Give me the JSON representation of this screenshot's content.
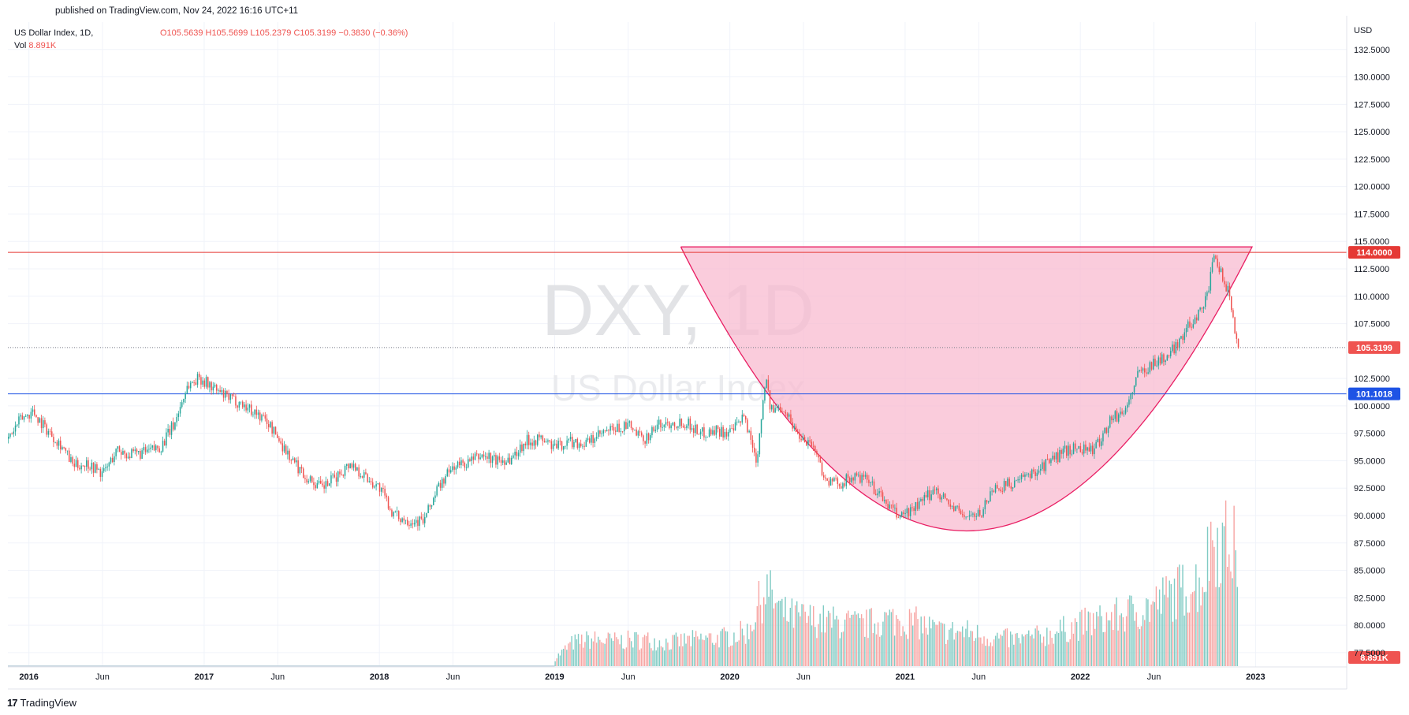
{
  "header": {
    "published": "published on TradingView.com, Nov 24, 2022 16:16 UTC+11",
    "symbol": "US Dollar Index, 1D,",
    "open": "O105.5639",
    "high": "H105.5699",
    "low": "L105.2379",
    "close": "C105.3199",
    "change": "−0.3830 (−0.36%)",
    "vol_label": "Vol",
    "vol_value": "8.891K"
  },
  "watermark": {
    "ticker": "DXY, 1D",
    "name": "US Dollar Index"
  },
  "footer": {
    "logo_mark": "17",
    "logo_text": "TradingView"
  },
  "colors": {
    "up": "#26a69a",
    "down": "#ef5350",
    "resistance": "#e53935",
    "support": "#1e53e5",
    "cup_fill": "#f8bbd0",
    "cup_stroke": "#e91e63"
  },
  "chart_data": {
    "type": "candlestick",
    "price_axis": {
      "unit_label": "USD",
      "ticks": [
        "132.5000",
        "130.0000",
        "127.5000",
        "125.0000",
        "122.5000",
        "120.0000",
        "117.5000",
        "115.0000",
        "112.5000",
        "110.0000",
        "107.5000",
        "102.5000",
        "100.0000",
        "97.5000",
        "95.0000",
        "92.5000",
        "90.0000",
        "87.5000",
        "85.0000",
        "82.5000",
        "80.0000",
        "77.5000"
      ],
      "tick_values": [
        132.5,
        130,
        127.5,
        125,
        122.5,
        120,
        117.5,
        115,
        112.5,
        110,
        107.5,
        102.5,
        100,
        97.5,
        95,
        92.5,
        90,
        87.5,
        85,
        82.5,
        80,
        77.5
      ],
      "range": [
        76.2,
        135
      ]
    },
    "time_axis": {
      "labels": [
        "2016",
        "Jun",
        "2017",
        "Jun",
        "2018",
        "Jun",
        "2019",
        "Jun",
        "2020",
        "Jun",
        "2021",
        "Jun",
        "2022",
        "Jun",
        "2023"
      ],
      "label_dates": [
        2016.0,
        2016.42,
        2017.0,
        2017.42,
        2018.0,
        2018.42,
        2019.0,
        2019.42,
        2020.0,
        2020.42,
        2021.0,
        2021.42,
        2022.0,
        2022.42,
        2023.0
      ],
      "range": [
        2015.88,
        2023.52
      ]
    },
    "price_series": {
      "date": [
        2015.88,
        2015.95,
        2016.02,
        2016.1,
        2016.18,
        2016.25,
        2016.33,
        2016.42,
        2016.5,
        2016.58,
        2016.67,
        2016.75,
        2016.83,
        2016.9,
        2016.97,
        2017.05,
        2017.12,
        2017.2,
        2017.28,
        2017.36,
        2017.42,
        2017.5,
        2017.58,
        2017.67,
        2017.75,
        2017.83,
        2017.92,
        2018.0,
        2018.08,
        2018.16,
        2018.25,
        2018.33,
        2018.42,
        2018.5,
        2018.58,
        2018.67,
        2018.75,
        2018.83,
        2018.92,
        2019.0,
        2019.08,
        2019.17,
        2019.25,
        2019.33,
        2019.42,
        2019.5,
        2019.58,
        2019.67,
        2019.75,
        2019.83,
        2019.92,
        2020.0,
        2020.08,
        2020.15,
        2020.2,
        2020.23,
        2020.3,
        2020.38,
        2020.47,
        2020.55,
        2020.63,
        2020.7,
        2020.78,
        2020.87,
        2020.95,
        2021.0,
        2021.08,
        2021.17,
        2021.25,
        2021.33,
        2021.42,
        2021.5,
        2021.58,
        2021.67,
        2021.75,
        2021.83,
        2021.92,
        2022.0,
        2022.08,
        2022.17,
        2022.25,
        2022.33,
        2022.42,
        2022.5,
        2022.58,
        2022.67,
        2022.72,
        2022.76,
        2022.8,
        2022.84,
        2022.88,
        2022.9
      ],
      "close": [
        97.0,
        98.8,
        99.5,
        97.8,
        96.5,
        94.5,
        94.8,
        93.8,
        96.0,
        95.5,
        95.8,
        96.3,
        98.5,
        101.8,
        102.6,
        101.6,
        100.8,
        100.3,
        99.5,
        98.5,
        97.0,
        95.0,
        93.5,
        92.5,
        93.5,
        94.8,
        93.5,
        92.5,
        90.0,
        89.6,
        89.5,
        92.5,
        94.5,
        94.8,
        95.5,
        95.0,
        95.2,
        96.8,
        97.0,
        96.2,
        96.8,
        96.5,
        97.3,
        97.8,
        98.2,
        96.8,
        98.2,
        98.5,
        98.5,
        97.5,
        97.8,
        97.5,
        99.0,
        95.0,
        102.8,
        99.5,
        100.0,
        97.5,
        96.5,
        93.0,
        93.0,
        93.5,
        93.2,
        91.5,
        90.0,
        90.2,
        91.0,
        92.5,
        91.0,
        90.0,
        90.0,
        92.5,
        92.8,
        93.3,
        94.2,
        95.0,
        96.0,
        96.2,
        96.0,
        98.8,
        99.5,
        103.0,
        104.0,
        104.5,
        106.5,
        108.5,
        110.0,
        113.5,
        112.0,
        110.5,
        107.0,
        105.3
      ]
    },
    "volume_series": {
      "date": [
        2019.0,
        2019.1,
        2019.2,
        2019.35,
        2019.5,
        2019.65,
        2019.8,
        2019.95,
        2020.1,
        2020.2,
        2020.3,
        2020.45,
        2020.6,
        2020.75,
        2020.9,
        2021.05,
        2021.2,
        2021.35,
        2021.5,
        2021.65,
        2021.8,
        2021.95,
        2022.05,
        2022.15,
        2022.3,
        2022.4,
        2022.5,
        2022.6,
        2022.7,
        2022.75,
        2022.8,
        2022.85,
        2022.9
      ],
      "level": [
        0.05,
        0.15,
        0.17,
        0.16,
        0.17,
        0.15,
        0.17,
        0.18,
        0.22,
        0.5,
        0.33,
        0.3,
        0.28,
        0.26,
        0.3,
        0.28,
        0.22,
        0.22,
        0.18,
        0.17,
        0.2,
        0.25,
        0.28,
        0.3,
        0.35,
        0.38,
        0.45,
        0.5,
        0.55,
        0.85,
        0.78,
        0.8,
        0.7
      ]
    },
    "horizontal_levels": [
      {
        "value": 114.0,
        "label": "114.0000",
        "color": "#e53935"
      },
      {
        "value": 101.1018,
        "label": "101.1018",
        "color": "#1e53e5"
      }
    ],
    "last_price": {
      "value": 105.3199,
      "label": "105.3199"
    },
    "volume_label": "8.891K",
    "cup_pattern": {
      "rim_price": 114.5,
      "bottom_price": 88.6,
      "start_date": 2019.72,
      "bottom_date": 2021.35,
      "end_date": 2022.98
    }
  }
}
